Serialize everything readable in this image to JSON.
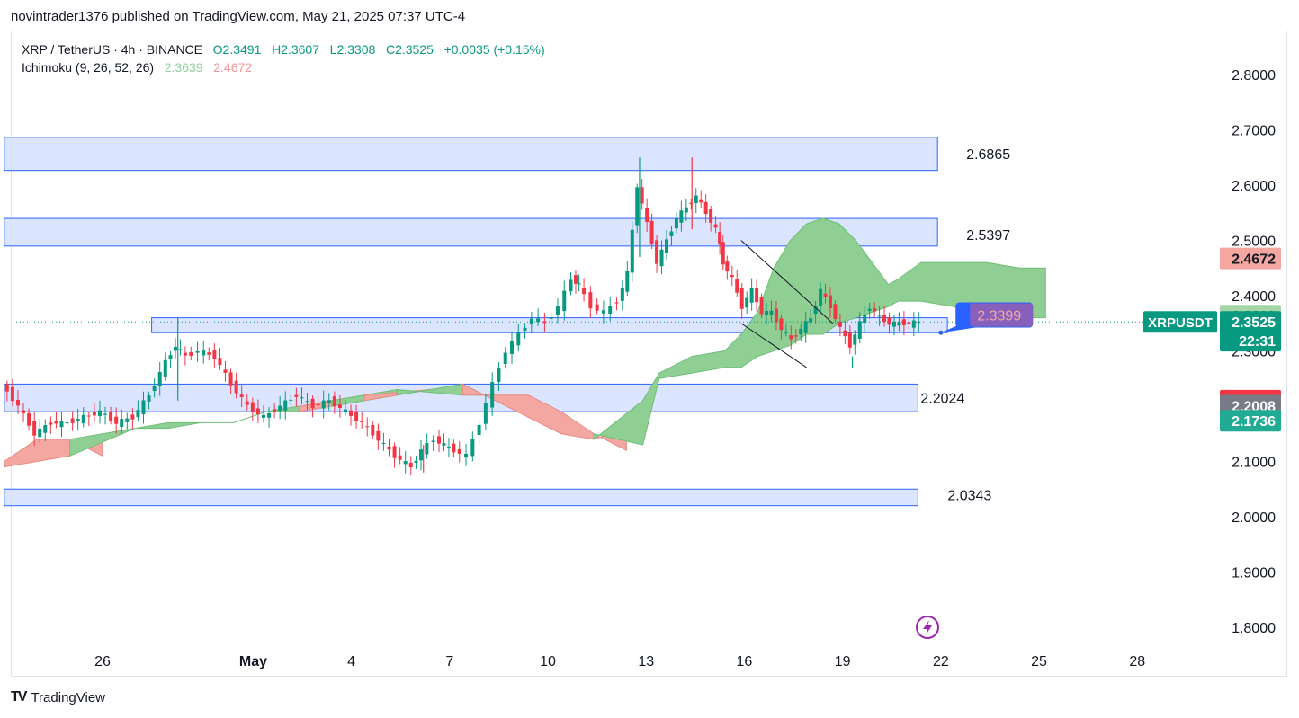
{
  "header": {
    "publisher_line": "novintrader1376 published on TradingView.com, May 21, 2025 07:37 UTC-4"
  },
  "legend": {
    "symbol_line": "XRP / TetherUS · 4h · BINANCE",
    "open": "O2.3491",
    "high": "H2.3607",
    "low": "L2.3308",
    "close": "C2.3525",
    "change": "+0.0035 (+0.15%)",
    "indicator": "Ichimoku (9, 26, 52, 26)",
    "indicator_v1": "2.3639",
    "indicator_v2": "2.4672"
  },
  "footer": {
    "brand": "TradingView",
    "logo": "TV"
  },
  "colors": {
    "up": "#089981",
    "down": "#f23645",
    "cloud_bull": "#8fcf94",
    "cloud_bear": "#f4a7a1",
    "zone_fill": "#d6e0ff",
    "zone_stroke": "#2962ff"
  },
  "chart_data": {
    "type": "candlestick",
    "symbol": "XRPUSDT",
    "timeframe": "4h",
    "ylim": [
      1.75,
      2.85
    ],
    "y_ticks": [
      "2.8000",
      "2.7000",
      "2.6000",
      "2.5000",
      "2.4000",
      "2.3000",
      "2.2000",
      "2.1000",
      "2.0000",
      "1.9000",
      "1.8000"
    ],
    "x_ticks": [
      {
        "label": "26",
        "day": 26.0
      },
      {
        "label": "May",
        "day": 30.6
      },
      {
        "label": "4",
        "day": 33.6
      },
      {
        "label": "7",
        "day": 36.6
      },
      {
        "label": "10",
        "day": 39.6
      },
      {
        "label": "13",
        "day": 42.6
      },
      {
        "label": "16",
        "day": 45.6
      },
      {
        "label": "19",
        "day": 48.6
      },
      {
        "label": "22",
        "day": 51.6
      },
      {
        "label": "25",
        "day": 54.6
      },
      {
        "label": "28",
        "day": 57.6
      }
    ],
    "zones": [
      {
        "top": 2.6865,
        "bottom": 2.6265,
        "x_from": 23.0,
        "x_to": 51.5,
        "label": "2.6865"
      },
      {
        "top": 2.5397,
        "bottom": 2.4897,
        "x_from": 23.0,
        "x_to": 51.5,
        "label": "2.5397"
      },
      {
        "top": 2.36,
        "bottom": 2.333,
        "x_from": 27.5,
        "x_to": 51.8
      },
      {
        "top": 2.24,
        "bottom": 2.19,
        "x_from": 23.0,
        "x_to": 50.9,
        "label": "2.2024"
      },
      {
        "top": 2.05,
        "bottom": 2.02,
        "x_from": 23.0,
        "x_to": 50.9,
        "label": "2.0343"
      }
    ],
    "close_path": [
      [
        23.0,
        2.24
      ],
      [
        23.5,
        2.2
      ],
      [
        24.0,
        2.15
      ],
      [
        24.5,
        2.17
      ],
      [
        25.0,
        2.17
      ],
      [
        25.5,
        2.18
      ],
      [
        26.0,
        2.19
      ],
      [
        26.5,
        2.17
      ],
      [
        27.0,
        2.18
      ],
      [
        27.5,
        2.22
      ],
      [
        28.0,
        2.28
      ],
      [
        28.3,
        2.31
      ],
      [
        28.6,
        2.29
      ],
      [
        29.0,
        2.3
      ],
      [
        29.5,
        2.29
      ],
      [
        30.0,
        2.24
      ],
      [
        30.5,
        2.2
      ],
      [
        31.0,
        2.18
      ],
      [
        31.5,
        2.2
      ],
      [
        32.0,
        2.22
      ],
      [
        32.5,
        2.2
      ],
      [
        33.0,
        2.21
      ],
      [
        33.5,
        2.19
      ],
      [
        34.0,
        2.17
      ],
      [
        34.5,
        2.14
      ],
      [
        35.0,
        2.11
      ],
      [
        35.5,
        2.09
      ],
      [
        35.8,
        2.12
      ],
      [
        36.2,
        2.14
      ],
      [
        36.8,
        2.12
      ],
      [
        37.2,
        2.11
      ],
      [
        37.6,
        2.17
      ],
      [
        38.0,
        2.24
      ],
      [
        38.4,
        2.3
      ],
      [
        38.8,
        2.33
      ],
      [
        39.2,
        2.36
      ],
      [
        39.6,
        2.35
      ],
      [
        40.0,
        2.38
      ],
      [
        40.4,
        2.43
      ],
      [
        40.6,
        2.42
      ],
      [
        41.0,
        2.38
      ],
      [
        41.4,
        2.37
      ],
      [
        41.8,
        2.39
      ],
      [
        42.1,
        2.44
      ],
      [
        42.4,
        2.6
      ],
      [
        42.7,
        2.53
      ],
      [
        43.0,
        2.46
      ],
      [
        43.3,
        2.5
      ],
      [
        43.6,
        2.54
      ],
      [
        43.9,
        2.56
      ],
      [
        44.2,
        2.58
      ],
      [
        44.5,
        2.55
      ],
      [
        44.8,
        2.52
      ],
      [
        45.0,
        2.46
      ],
      [
        45.3,
        2.43
      ],
      [
        45.6,
        2.38
      ],
      [
        45.9,
        2.41
      ],
      [
        46.2,
        2.37
      ],
      [
        46.5,
        2.37
      ],
      [
        46.8,
        2.34
      ],
      [
        47.1,
        2.32
      ],
      [
        47.4,
        2.34
      ],
      [
        47.7,
        2.36
      ],
      [
        48.0,
        2.41
      ],
      [
        48.3,
        2.38
      ],
      [
        48.6,
        2.34
      ],
      [
        48.9,
        2.31
      ],
      [
        49.2,
        2.35
      ],
      [
        49.5,
        2.38
      ],
      [
        49.8,
        2.36
      ],
      [
        50.1,
        2.35
      ],
      [
        50.4,
        2.35
      ],
      [
        50.7,
        2.35
      ],
      [
        51.0,
        2.3525
      ]
    ],
    "spikes": [
      {
        "day": 42.4,
        "high": 2.65,
        "low": 2.47
      },
      {
        "day": 44.0,
        "high": 2.65,
        "low": 2.52
      },
      {
        "day": 28.3,
        "high": 2.36,
        "low": 2.21
      },
      {
        "day": 35.8,
        "high": 2.13,
        "low": 2.08
      },
      {
        "day": 48.9,
        "high": 2.29,
        "low": 2.27
      }
    ],
    "cloud_span_a": [
      [
        23.0,
        2.09
      ],
      [
        24.0,
        2.1
      ],
      [
        25.0,
        2.11
      ],
      [
        26.0,
        2.14
      ],
      [
        27.0,
        2.16
      ],
      [
        28.0,
        2.17
      ],
      [
        29.0,
        2.17
      ],
      [
        30.0,
        2.17
      ],
      [
        31.0,
        2.19
      ],
      [
        32.0,
        2.2
      ],
      [
        33.0,
        2.2
      ],
      [
        34.0,
        2.22
      ],
      [
        35.0,
        2.22
      ],
      [
        36.0,
        2.23
      ],
      [
        37.0,
        2.24
      ],
      [
        38.0,
        2.21
      ],
      [
        39.0,
        2.18
      ],
      [
        40.0,
        2.15
      ],
      [
        41.0,
        2.14
      ],
      [
        42.0,
        2.16
      ],
      [
        42.5,
        2.21
      ],
      [
        43.0,
        2.26
      ],
      [
        44.0,
        2.29
      ],
      [
        45.0,
        2.3
      ],
      [
        45.5,
        2.33
      ],
      [
        46.0,
        2.37
      ],
      [
        46.5,
        2.45
      ],
      [
        47.0,
        2.5
      ],
      [
        47.5,
        2.53
      ],
      [
        48.0,
        2.54
      ],
      [
        48.5,
        2.53
      ],
      [
        49.0,
        2.5
      ],
      [
        49.5,
        2.46
      ],
      [
        50.0,
        2.42
      ],
      [
        50.3,
        2.43
      ],
      [
        51.0,
        2.46
      ],
      [
        52.0,
        2.46
      ],
      [
        53.0,
        2.46
      ],
      [
        54.0,
        2.45
      ],
      [
        54.8,
        2.45
      ]
    ],
    "cloud_span_b": [
      [
        23.0,
        2.1
      ],
      [
        24.0,
        2.14
      ],
      [
        25.0,
        2.14
      ],
      [
        26.0,
        2.11
      ],
      [
        27.0,
        2.16
      ],
      [
        28.0,
        2.16
      ],
      [
        29.0,
        2.17
      ],
      [
        30.0,
        2.17
      ],
      [
        31.0,
        2.19
      ],
      [
        32.0,
        2.19
      ],
      [
        33.0,
        2.21
      ],
      [
        34.0,
        2.21
      ],
      [
        35.0,
        2.23
      ],
      [
        36.0,
        2.23
      ],
      [
        37.0,
        2.22
      ],
      [
        38.0,
        2.22
      ],
      [
        39.0,
        2.22
      ],
      [
        40.0,
        2.19
      ],
      [
        41.0,
        2.15
      ],
      [
        42.0,
        2.12
      ],
      [
        42.5,
        2.13
      ],
      [
        43.0,
        2.25
      ],
      [
        44.0,
        2.26
      ],
      [
        45.0,
        2.27
      ],
      [
        45.5,
        2.27
      ],
      [
        46.0,
        2.29
      ],
      [
        46.5,
        2.3
      ],
      [
        47.0,
        2.31
      ],
      [
        47.5,
        2.33
      ],
      [
        48.0,
        2.33
      ],
      [
        48.5,
        2.35
      ],
      [
        49.0,
        2.36
      ],
      [
        49.5,
        2.37
      ],
      [
        50.0,
        2.38
      ],
      [
        50.3,
        2.39
      ],
      [
        51.0,
        2.39
      ],
      [
        52.0,
        2.38
      ],
      [
        53.0,
        2.36
      ],
      [
        54.0,
        2.36
      ],
      [
        54.8,
        2.36
      ]
    ],
    "wedge_lines": [
      {
        "x1": 45.5,
        "y1": 2.5,
        "x2": 48.3,
        "y2": 2.35
      },
      {
        "x1": 45.5,
        "y1": 2.35,
        "x2": 47.5,
        "y2": 2.27
      }
    ],
    "callout": {
      "text": "2.3399",
      "price": 2.365,
      "day": 52.6,
      "tip_day": 51.6,
      "tip_price": 2.333
    },
    "price_badges": [
      {
        "value": "2.4672",
        "price": 2.4672,
        "bg": "#f4a7a1",
        "fg": "#131722"
      },
      {
        "value": "2.3639",
        "price": 2.3639,
        "bg": "#a5d6a7",
        "fg": "#131722"
      },
      {
        "value": "2.3525",
        "price": 2.3525,
        "bg": "#089981",
        "fg": "#ffffff"
      },
      {
        "value": "22:31",
        "price": 2.3185,
        "bg": "#089981",
        "fg": "#ffffff"
      },
      {
        "value": "2.2100",
        "price": 2.21,
        "bg": "#f23645",
        "fg": "#ffffff"
      },
      {
        "value": "2.2008",
        "price": 2.2008,
        "bg": "#787b86",
        "fg": "#ffffff"
      },
      {
        "value": "2.1736",
        "price": 2.1736,
        "bg": "#22ab94",
        "fg": "#ffffff"
      }
    ],
    "symbol_badge": {
      "text": "XRPUSDT",
      "price": 2.3525
    }
  }
}
